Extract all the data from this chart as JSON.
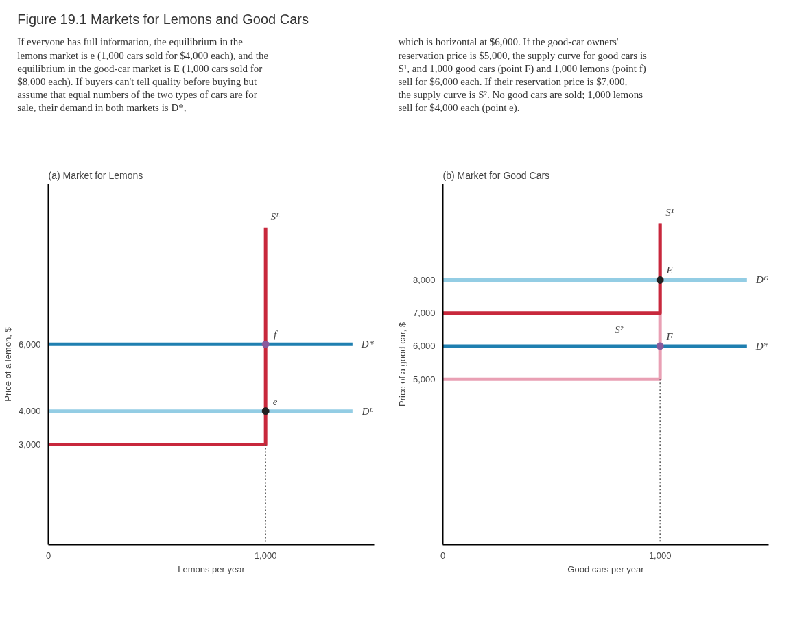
{
  "chart_data": [
    {
      "type": "other",
      "title": "Figure 19.1 Markets for Lemons and Good Cars",
      "annotations": [
        "If everyone has full information, the equilibrium in the lemons market is e (1,000 cars sold for $4,000 each), and the equilibrium in the good-car market is E (1,000 cars sold for $8,000 each). If buyers can't tell quality before buying but assume that equal numbers of the two types of cars are for sale, their demand in both markets is D*,",
        "which is horizontal at $6,000. If the good-car owners' reservation price is $5,000, the supply curve for good cars is S¹, and 1,000 good cars (point F) and 1,000 lemons (point f) sell for $6,000 each. If their reservation price is $7,000, the supply curve is S². No good cars are sold; 1,000 lemons sell for $4,000 each (point e)."
      ]
    },
    {
      "type": "line",
      "title": "(a) Market for Lemons",
      "xlabel": "Lemons per year",
      "ylabel": "Price of a lemon, $",
      "xlim": [
        0,
        1500
      ],
      "ylim": [
        0,
        10800
      ],
      "xticks": [
        0,
        {
          "value": 1000,
          "label": "1,000"
        }
      ],
      "yticks": [
        {
          "value": 3000,
          "label": "3,000"
        },
        {
          "value": 4000,
          "label": "4,000"
        },
        {
          "value": 6000,
          "label": "6,000"
        }
      ],
      "series": [
        {
          "name": "D*",
          "color": "#1f7fb0",
          "x": [
            0,
            1400
          ],
          "values": [
            6000,
            6000
          ]
        },
        {
          "name": "Dᴸ",
          "color": "#93cde4",
          "x": [
            0,
            1400
          ],
          "values": [
            4000,
            4000
          ]
        },
        {
          "name": "Sᴸ",
          "color": "#c8283c",
          "x": [
            0,
            1000,
            1000
          ],
          "values": [
            3000,
            3000,
            9500
          ]
        },
        {
          "color": "#555555",
          "line_style": "dotted",
          "x": [
            1000,
            1000
          ],
          "values": [
            3000,
            0
          ]
        },
        {
          "name": "f",
          "type": "scatter",
          "color": "#8a5a9c",
          "x": [
            1000
          ],
          "values": [
            6000
          ]
        },
        {
          "name": "e",
          "type": "scatter",
          "color": "#222222",
          "x": [
            1000
          ],
          "values": [
            4000
          ]
        }
      ]
    },
    {
      "type": "line",
      "title": "(b) Market for Good Cars",
      "xlabel": "Good cars per year",
      "ylabel": "Price of a good car, $",
      "xlim": [
        0,
        1500
      ],
      "ylim": [
        0,
        10900
      ],
      "xticks": [
        0,
        {
          "value": 1000,
          "label": "1,000"
        }
      ],
      "yticks": [
        {
          "value": 5000,
          "label": "5,000"
        },
        {
          "value": 6000,
          "label": "6,000"
        },
        {
          "value": 7000,
          "label": "7,000"
        },
        {
          "value": 8000,
          "label": "8,000"
        }
      ],
      "series": [
        {
          "name": "Dᴳ",
          "color": "#93cde4",
          "x": [
            0,
            1400
          ],
          "values": [
            8000,
            8000
          ]
        },
        {
          "name": "D*",
          "color": "#1f7fb0",
          "x": [
            0,
            1400
          ],
          "values": [
            6000,
            6000
          ]
        },
        {
          "name": "S¹",
          "color": "#e9a0b4",
          "x": [
            0,
            1000,
            1000
          ],
          "values": [
            5000,
            5000,
            9700
          ]
        },
        {
          "name": "S²",
          "color": "#c8283c",
          "x": [
            0,
            1000,
            1000
          ],
          "values": [
            7000,
            7000,
            9700
          ]
        },
        {
          "color": "#555555",
          "line_style": "dotted",
          "x": [
            1000,
            1000
          ],
          "values": [
            5000,
            0
          ]
        },
        {
          "name": "E",
          "type": "scatter",
          "color": "#222222",
          "x": [
            1000
          ],
          "values": [
            8000
          ]
        },
        {
          "name": "F",
          "type": "scatter",
          "color": "#8a5a9c",
          "x": [
            1000
          ],
          "values": [
            6000
          ]
        }
      ]
    }
  ]
}
